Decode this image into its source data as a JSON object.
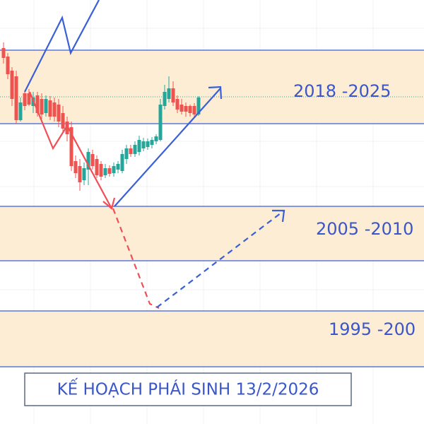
{
  "zones": [
    {
      "label": "2018 -2025"
    },
    {
      "label": "2005 -2010"
    },
    {
      "label": "1995 -200"
    }
  ],
  "title": "KẾ HOẠCH PHÁI SINH 13/2/2026"
}
